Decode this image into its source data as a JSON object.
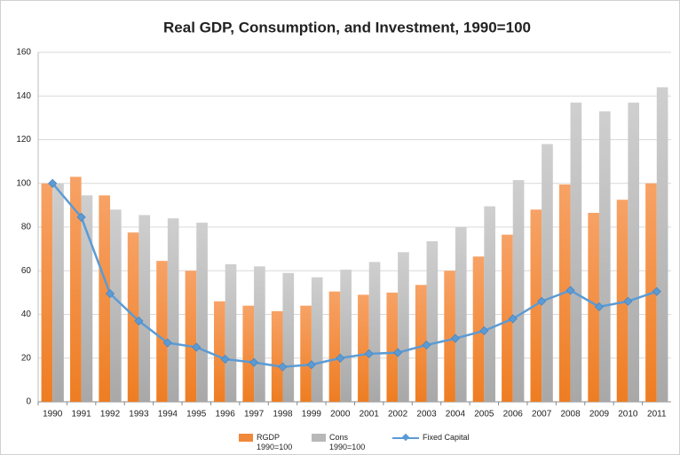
{
  "chart_data": {
    "type": "bar",
    "title": "Real GDP, Consumption, and Investment, 1990=100",
    "categories": [
      "1990",
      "1991",
      "1992",
      "1993",
      "1994",
      "1995",
      "1996",
      "1997",
      "1998",
      "1999",
      "2000",
      "2001",
      "2002",
      "2003",
      "2004",
      "2005",
      "2006",
      "2007",
      "2008",
      "2009",
      "2010",
      "2011"
    ],
    "series": [
      {
        "name": "RGDP\n1990=100",
        "type": "bar",
        "color": "#f0883a",
        "values": [
          100,
          103,
          94.5,
          77.5,
          64.5,
          60,
          46,
          44,
          41.5,
          44,
          50.5,
          49,
          50,
          53.5,
          60,
          66.5,
          76.5,
          88,
          99.5,
          86.5,
          92.5,
          100
        ]
      },
      {
        "name": "Cons\n1990=100",
        "type": "bar",
        "color": "#b8b8b8",
        "values": [
          100,
          94.5,
          88,
          85.5,
          84,
          82,
          63,
          62,
          59,
          57,
          60.5,
          64,
          68.5,
          73.5,
          80,
          89.5,
          101.5,
          118,
          137,
          133,
          137,
          144
        ]
      },
      {
        "name": "Fixed Capital",
        "type": "line",
        "color": "#5b9bd5",
        "values": [
          100,
          84.5,
          49.5,
          37,
          27,
          25,
          19.5,
          18,
          16,
          17,
          20,
          22,
          22.5,
          26,
          29,
          32.5,
          38,
          46,
          51,
          43.5,
          46,
          50.5
        ]
      }
    ],
    "ylim": [
      0,
      160
    ],
    "yticks": [
      0,
      20,
      40,
      60,
      80,
      100,
      120,
      140,
      160
    ],
    "grid": true
  }
}
